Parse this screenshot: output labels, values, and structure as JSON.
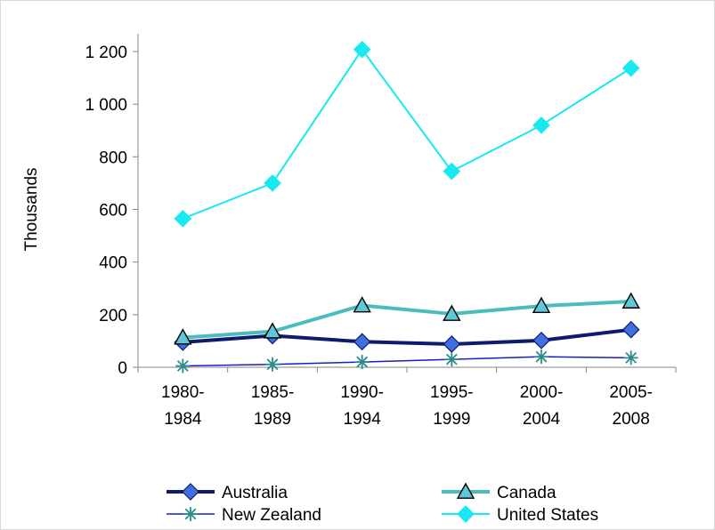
{
  "chart_data": {
    "type": "line",
    "title": "",
    "xlabel": "",
    "ylabel": "Thousands",
    "categories": [
      [
        "1980-",
        "1984"
      ],
      [
        "1985-",
        "1989"
      ],
      [
        "1990-",
        "1994"
      ],
      [
        "1995-",
        "1999"
      ],
      [
        "2000-",
        "2004"
      ],
      [
        "2005-",
        "2008"
      ]
    ],
    "ylim": [
      0,
      1200
    ],
    "yticks": [
      0,
      200,
      400,
      600,
      800,
      1000,
      1200
    ],
    "ytick_labels": [
      "0",
      "200",
      "400",
      "600",
      "800",
      "1 000",
      "1 200"
    ],
    "grid": false,
    "legend_position": "bottom",
    "series": [
      {
        "name": "Australia",
        "values": [
          95,
          120,
          97,
          88,
          102,
          143
        ],
        "color": "#0d1a6e",
        "marker": "diamond",
        "marker_fill": "#3f6fe0",
        "width": 4
      },
      {
        "name": "Canada",
        "values": [
          113,
          136,
          235,
          203,
          233,
          250
        ],
        "color": "#4bbcbc",
        "marker": "triangle",
        "marker_fill": "#5ec8d8",
        "width": 4
      },
      {
        "name": "New Zealand",
        "values": [
          5,
          11,
          20,
          30,
          40,
          36
        ],
        "color": "#1c1ccd",
        "marker": "asterisk",
        "marker_fill": "#2a8c8c",
        "width": 1.5
      },
      {
        "name": "United States",
        "values": [
          565,
          700,
          1208,
          745,
          920,
          1137
        ],
        "color": "#18e8f0",
        "marker": "diamond",
        "marker_fill": "#18e8f0",
        "width": 2
      }
    ]
  }
}
